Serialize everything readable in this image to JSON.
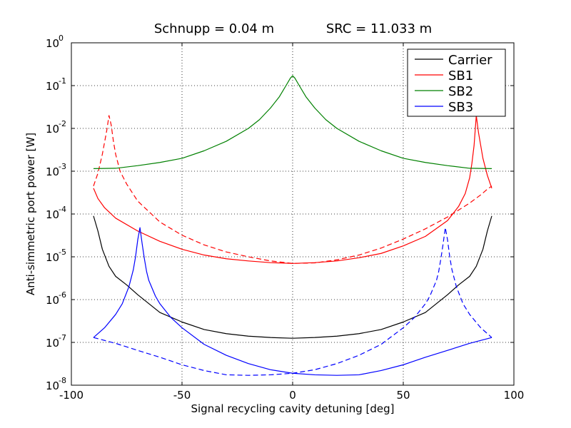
{
  "chart_data": {
    "type": "line",
    "title_parts": [
      "Schnupp = 0.04 m",
      "SRC = 11.033 m"
    ],
    "xlabel": "Signal recycling cavity detuning [deg]",
    "ylabel": "Anti-simmetric port power [W]",
    "xlim": [
      -100,
      100
    ],
    "ylim": [
      1e-08,
      1
    ],
    "y_scale": "log",
    "grid": true,
    "x_ticks": [
      -100,
      -50,
      0,
      50,
      100
    ],
    "x_tick_labels": [
      "-100",
      "-50",
      "0",
      "50",
      "100"
    ],
    "y_tick_exponents": [
      "0",
      "-1",
      "-2",
      "-3",
      "-4",
      "-5",
      "-6",
      "-7",
      "-8"
    ],
    "y_tick_base": "10",
    "legend_position": "top-right",
    "series": [
      {
        "name": "Carrier",
        "color": "#000000",
        "dash": "solid",
        "x": [
          -90,
          -88,
          -86,
          -83,
          -80,
          -75,
          -70,
          -60,
          -50,
          -40,
          -30,
          -20,
          -10,
          0,
          10,
          20,
          30,
          40,
          50,
          60,
          70,
          75,
          80,
          83,
          86,
          88,
          90
        ],
        "y": [
          9e-05,
          4e-05,
          1.5e-05,
          6e-06,
          3.5e-06,
          2.2e-06,
          1.3e-06,
          5e-07,
          3e-07,
          2e-07,
          1.6e-07,
          1.4e-07,
          1.3e-07,
          1.25e-07,
          1.3e-07,
          1.4e-07,
          1.6e-07,
          2e-07,
          3e-07,
          5e-07,
          1.3e-06,
          2.2e-06,
          3.5e-06,
          6e-06,
          1.5e-05,
          4e-05,
          9e-05
        ]
      },
      {
        "name": "SB1",
        "color": "#ff0000",
        "dash": "solid",
        "x": [
          -90,
          -88,
          -85,
          -80,
          -70,
          -60,
          -50,
          -40,
          -30,
          -20,
          -10,
          0,
          10,
          20,
          30,
          40,
          50,
          60,
          70,
          75,
          78,
          80,
          81,
          82,
          83,
          84,
          86,
          88,
          90
        ],
        "y": [
          0.0004,
          0.00023,
          0.00014,
          8e-05,
          4e-05,
          2.3e-05,
          1.5e-05,
          1.1e-05,
          9e-06,
          8e-06,
          7.3e-06,
          7e-06,
          7.3e-06,
          8e-06,
          9.5e-06,
          1.2e-05,
          1.8e-05,
          3e-05,
          7e-05,
          0.00015,
          0.0003,
          0.0007,
          0.0015,
          0.004,
          0.02,
          0.008,
          0.002,
          0.0008,
          0.0004
        ]
      },
      {
        "name": "",
        "color": "#ff0000",
        "dash": "dashed",
        "x": [
          -90,
          -88,
          -86,
          -84,
          -83,
          -82,
          -81,
          -80,
          -78,
          -75,
          -70,
          -60,
          -50,
          -40,
          -30,
          -20,
          -10,
          0,
          10,
          20,
          30,
          40,
          50,
          60,
          70,
          80,
          85,
          88,
          90
        ],
        "y": [
          0.00045,
          0.0009,
          0.0025,
          0.009,
          0.02,
          0.012,
          0.005,
          0.0025,
          0.001,
          0.0005,
          0.0002,
          6.5e-05,
          3.2e-05,
          1.9e-05,
          1.3e-05,
          1e-05,
          8e-06,
          7e-06,
          7.2e-06,
          8.5e-06,
          1.1e-05,
          1.6e-05,
          2.6e-05,
          4.5e-05,
          8.5e-05,
          0.00018,
          0.00028,
          0.00038,
          0.00045
        ]
      },
      {
        "name": "SB2",
        "color": "#008000",
        "dash": "solid",
        "x": [
          -90,
          -80,
          -70,
          -60,
          -50,
          -40,
          -30,
          -20,
          -15,
          -10,
          -6,
          -3,
          -1,
          0,
          1,
          3,
          6,
          10,
          15,
          20,
          30,
          40,
          50,
          60,
          70,
          80,
          90
        ],
        "y": [
          0.00115,
          0.00117,
          0.00135,
          0.0016,
          0.002,
          0.003,
          0.005,
          0.01,
          0.016,
          0.03,
          0.055,
          0.1,
          0.15,
          0.17,
          0.15,
          0.1,
          0.055,
          0.03,
          0.016,
          0.01,
          0.005,
          0.003,
          0.002,
          0.0016,
          0.00135,
          0.00117,
          0.00115
        ]
      },
      {
        "name": "SB3",
        "color": "#0000ff",
        "dash": "solid",
        "x": [
          -90,
          -85,
          -80,
          -77,
          -74,
          -72,
          -71,
          -70,
          -69,
          -68,
          -67,
          -66,
          -65,
          -62,
          -60,
          -55,
          -50,
          -40,
          -30,
          -20,
          -10,
          0,
          10,
          20,
          30,
          40,
          50,
          60,
          70,
          80,
          90
        ],
        "y": [
          1.3e-07,
          2.2e-07,
          4.5e-07,
          8e-07,
          2e-06,
          5e-06,
          1e-05,
          2.5e-05,
          4.8e-05,
          2e-05,
          9e-06,
          4.5e-06,
          2.8e-06,
          1.2e-06,
          8e-07,
          3.8e-07,
          2.2e-07,
          9e-08,
          5e-08,
          3.2e-08,
          2.3e-08,
          1.9e-08,
          1.75e-08,
          1.7e-08,
          1.75e-08,
          2.2e-08,
          3e-08,
          4.5e-08,
          6.5e-08,
          9.5e-08,
          1.3e-07
        ]
      },
      {
        "name": "",
        "color": "#0000ff",
        "dash": "dashed",
        "x": [
          -90,
          -80,
          -70,
          -60,
          -50,
          -40,
          -30,
          -20,
          -10,
          0,
          10,
          20,
          30,
          40,
          50,
          55,
          60,
          62,
          65,
          66,
          67,
          68,
          69,
          70,
          71,
          72,
          74,
          77,
          80,
          85,
          90
        ],
        "y": [
          1.3e-07,
          9.5e-08,
          6.5e-08,
          4.5e-08,
          3e-08,
          2.2e-08,
          1.75e-08,
          1.7e-08,
          1.75e-08,
          1.9e-08,
          2.3e-08,
          3.2e-08,
          5e-08,
          9e-08,
          2.2e-07,
          3.8e-07,
          8e-07,
          1.2e-06,
          2.8e-06,
          4.5e-06,
          9e-06,
          2e-05,
          4.8e-05,
          2.5e-05,
          1e-05,
          5e-06,
          2e-06,
          8e-07,
          4.5e-07,
          2.2e-07,
          1.3e-07
        ]
      }
    ]
  }
}
